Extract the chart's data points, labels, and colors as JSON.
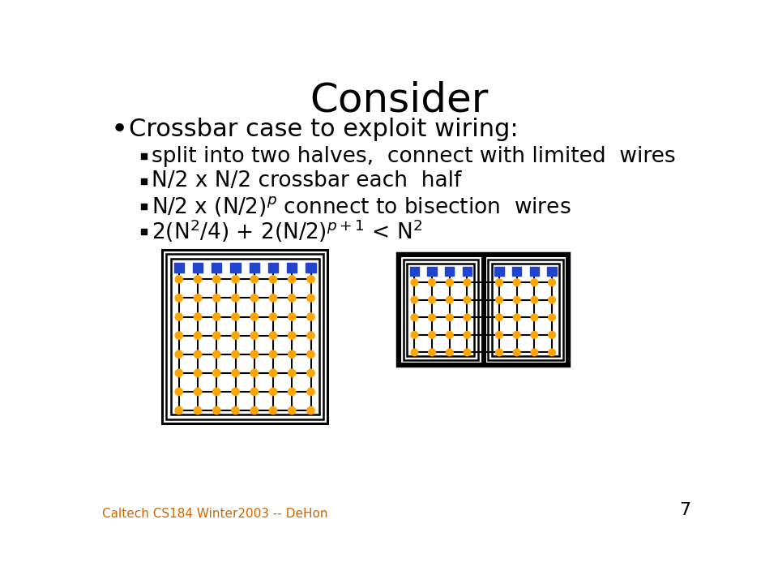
{
  "title": "Consider",
  "title_fontsize": 36,
  "bg_color": "#ffffff",
  "text_color": "#000000",
  "bullet_main": "Crossbar case to exploit wiring:",
  "bullet_main_fontsize": 22,
  "sub_bullets": [
    "split into two halves,  connect with limited  wires",
    "N/2 x N/2 crossbar each  half",
    "N/2 x (N/2)$^p$ connect to bisection  wires",
    "2(N$^2$/4) + 2(N/2)$^{p+1}$ < N$^2$"
  ],
  "sub_bullet_fontsize": 19,
  "footer_text": "Caltech CS184 Winter2003 -- DeHon",
  "footer_color": "#cc6600",
  "footer_fontsize": 11,
  "page_number": "7",
  "node_color": "#FFA500",
  "square_color": "#2244CC",
  "line_color": "#000000",
  "border_color": "#000000",
  "left_xbar": {
    "ox": 130,
    "oy": 335,
    "cols": 8,
    "rows": 8,
    "cell": 30
  },
  "right_xbar": {
    "ox_L": 505,
    "ox_R": 640,
    "oy": 340,
    "cols": 4,
    "rows": 5,
    "cell": 28
  }
}
